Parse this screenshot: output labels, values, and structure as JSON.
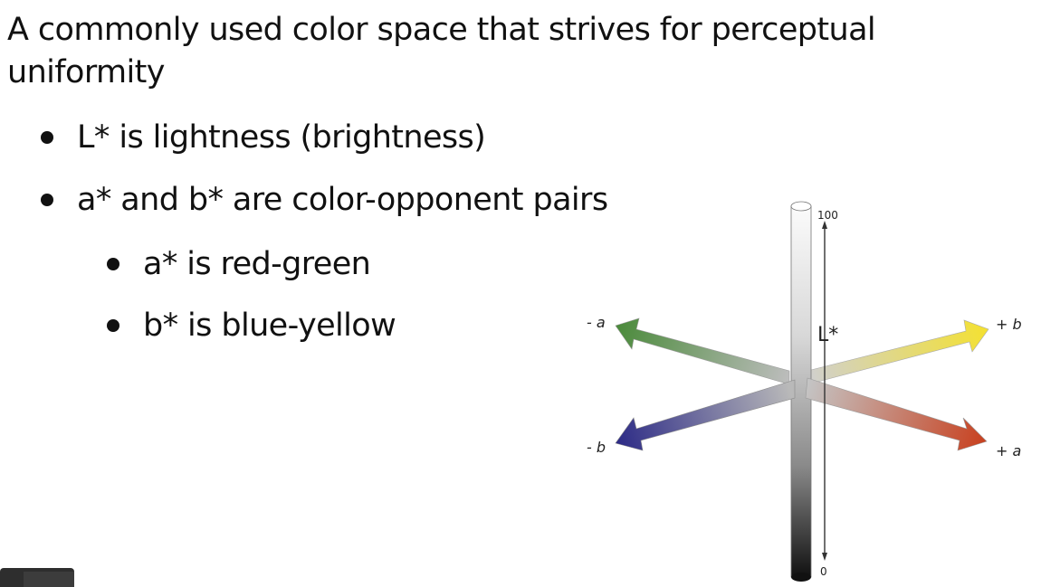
{
  "intro": "A commonly used color space that strives for perceptual uniformity",
  "bullets": [
    {
      "text": "L* is lightness (brightness)"
    },
    {
      "text": "a* and b* are color-opponent pairs"
    },
    {
      "text": "a* is red-green"
    },
    {
      "text": "b* is blue-yellow"
    }
  ],
  "diagram": {
    "vertical_axis_label": "L*",
    "top_value": "100",
    "bottom_value": "0",
    "neg_a_label": "- a",
    "pos_a_label": "+ a",
    "neg_b_label": "- b",
    "pos_b_label": "+ b",
    "colors": {
      "neg_a": "#4a8a3a",
      "pos_a": "#c8401e",
      "neg_b": "#2c2a86",
      "pos_b": "#f4e130"
    }
  }
}
